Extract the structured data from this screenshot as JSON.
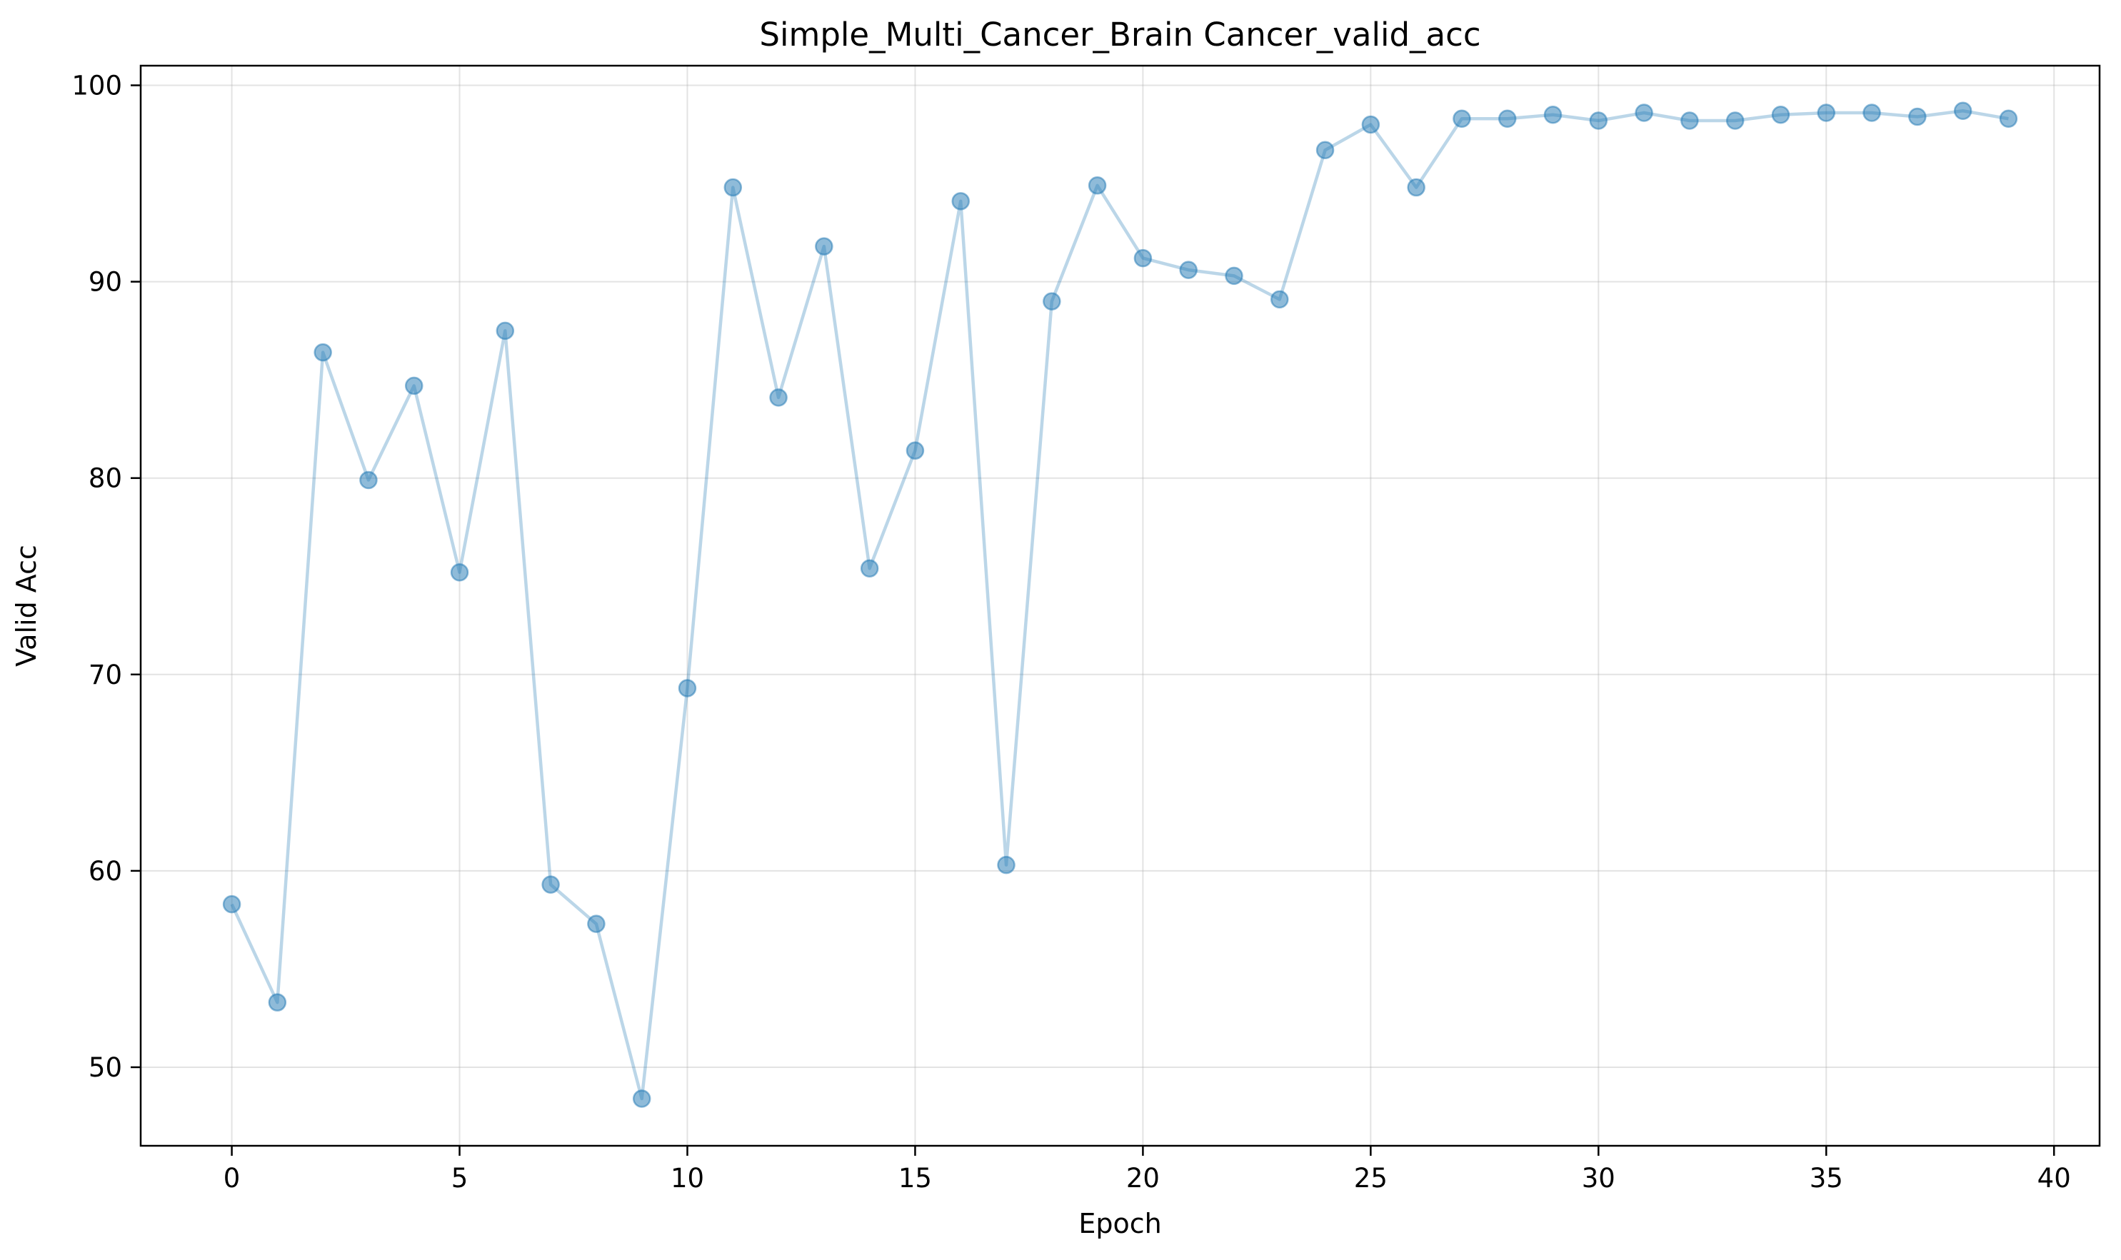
{
  "chart_data": {
    "type": "line",
    "title": "Simple_Multi_Cancer_Brain Cancer_valid_acc",
    "xlabel": "Epoch",
    "ylabel": "Valid Acc",
    "xlim": [
      -2,
      41
    ],
    "ylim": [
      46,
      101
    ],
    "xticks": [
      0,
      5,
      10,
      15,
      20,
      25,
      30,
      35,
      40
    ],
    "yticks": [
      50,
      60,
      70,
      80,
      90,
      100
    ],
    "grid": true,
    "legend": "none",
    "series": [
      {
        "color": "#1f77b4",
        "markers": true,
        "x": [
          0,
          1,
          2,
          3,
          4,
          5,
          6,
          7,
          8,
          9,
          10,
          11,
          12,
          13,
          14,
          15,
          16,
          17,
          18,
          19,
          20,
          21,
          22,
          23,
          24,
          25,
          26,
          27,
          28,
          29,
          30,
          31,
          32,
          33,
          34,
          35,
          36,
          37,
          38,
          39
        ],
        "values": [
          58.3,
          53.3,
          86.4,
          79.9,
          84.7,
          75.2,
          87.5,
          59.3,
          57.3,
          48.4,
          69.3,
          94.8,
          84.1,
          91.8,
          75.4,
          81.4,
          94.1,
          60.3,
          89.0,
          94.9,
          91.2,
          90.6,
          90.3,
          89.1,
          96.7,
          98.0,
          94.8,
          98.3,
          98.3,
          98.5,
          98.2,
          98.6,
          98.2,
          98.2,
          98.5,
          98.6,
          98.6,
          98.4,
          98.7,
          98.3
        ]
      }
    ]
  }
}
